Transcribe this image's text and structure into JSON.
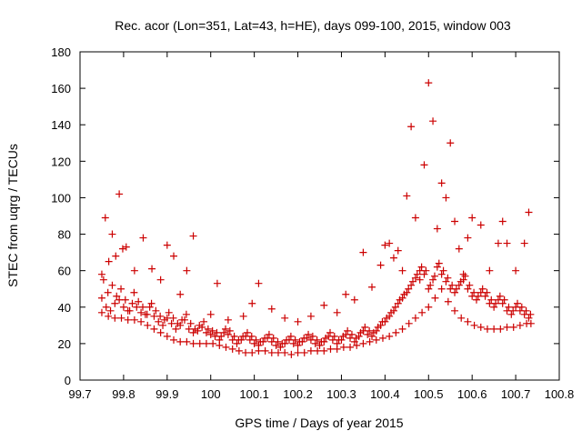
{
  "chart_data": {
    "type": "scatter",
    "title": "Rec. acor (Lon=351, Lat=43, h=HE), days 099-100, 2015, window 003",
    "xlabel": "GPS time / Days of year 2015",
    "ylabel": "STEC from uqrg / TECUs",
    "xlim": [
      99.7,
      100.8
    ],
    "ylim": [
      0,
      180
    ],
    "xticks": [
      99.7,
      99.8,
      99.9,
      100,
      100.1,
      100.2,
      100.3,
      100.4,
      100.5,
      100.6,
      100.7,
      100.8
    ],
    "xtick_labels": [
      "99.7",
      "99.8",
      "99.9",
      "100",
      "100.1",
      "100.2",
      "100.3",
      "100.4",
      "100.5",
      "100.6",
      "100.7",
      "100.8"
    ],
    "yticks": [
      0,
      20,
      40,
      60,
      80,
      100,
      120,
      140,
      160,
      180
    ],
    "ytick_labels": [
      "0",
      "20",
      "40",
      "60",
      "80",
      "100",
      "120",
      "140",
      "160",
      "180"
    ],
    "grid": false,
    "legend": "none",
    "marker": "+",
    "color": "#cc0000",
    "series": [
      {
        "x": [
          99.75,
          99.765,
          99.78,
          99.795,
          99.81,
          99.825,
          99.84,
          99.855,
          99.87,
          99.885,
          99.9,
          99.915,
          99.93,
          99.945,
          99.96,
          99.975,
          99.99,
          100.005,
          100.02,
          100.035,
          100.05,
          100.065,
          100.08,
          100.095,
          100.11,
          100.125,
          100.14,
          100.155,
          100.17,
          100.185,
          100.2,
          100.215,
          100.23,
          100.245,
          100.26,
          100.275,
          100.29,
          100.305,
          100.32,
          100.335,
          100.35,
          100.365,
          100.38,
          100.395,
          100.41,
          100.425,
          100.44,
          100.455,
          100.47,
          100.485,
          100.5,
          100.515,
          100.53,
          100.545,
          100.56,
          100.575,
          100.59,
          100.605,
          100.62,
          100.635,
          100.65,
          100.665,
          100.68,
          100.695,
          100.71,
          100.725,
          100.735
        ],
        "y": [
          37,
          35,
          34,
          34,
          33,
          33,
          32,
          30,
          28,
          26,
          24,
          22,
          21,
          21,
          20,
          20,
          20,
          20,
          19,
          18,
          17,
          16,
          15,
          15,
          16,
          16,
          15,
          15,
          15,
          14,
          15,
          15,
          16,
          16,
          16,
          17,
          17,
          18,
          18,
          19,
          20,
          21,
          22,
          23,
          24,
          26,
          28,
          31,
          34,
          37,
          40,
          45,
          50,
          43,
          38,
          34,
          32,
          30,
          29,
          28,
          28,
          28,
          29,
          29,
          30,
          31,
          31
        ]
      },
      {
        "x": [
          99.75,
          99.76,
          99.77,
          99.78,
          99.79,
          99.8,
          99.81,
          99.82,
          99.83,
          99.84,
          99.85,
          99.86,
          99.87,
          99.88,
          99.89,
          99.9,
          99.91,
          99.92,
          99.93,
          99.94,
          99.95,
          99.96,
          99.97,
          99.98,
          99.99,
          100.0,
          100.01,
          100.02,
          100.03,
          100.04,
          100.05,
          100.06,
          100.07,
          100.08,
          100.09,
          100.1,
          100.11,
          100.12,
          100.13,
          100.14,
          100.15,
          100.16,
          100.17,
          100.18,
          100.19,
          100.2,
          100.21,
          100.22,
          100.23,
          100.24,
          100.25,
          100.26,
          100.27,
          100.28,
          100.29,
          100.3,
          100.31,
          100.32,
          100.33,
          100.34,
          100.35,
          100.36,
          100.37,
          100.38,
          100.39,
          100.4,
          100.41,
          100.42,
          100.43,
          100.44,
          100.45,
          100.46,
          100.47,
          100.48,
          100.49,
          100.5,
          100.51,
          100.52,
          100.53,
          100.54,
          100.55,
          100.56,
          100.57,
          100.58,
          100.59,
          100.6,
          100.61,
          100.62,
          100.63,
          100.64,
          100.65,
          100.66,
          100.67,
          100.68,
          100.69,
          100.7,
          100.71,
          100.72,
          100.73
        ],
        "y": [
          45,
          40,
          38,
          42,
          44,
          40,
          38,
          42,
          40,
          37,
          36,
          40,
          35,
          32,
          30,
          34,
          31,
          28,
          30,
          33,
          28,
          26,
          27,
          29,
          26,
          25,
          24,
          22,
          26,
          25,
          22,
          20,
          22,
          24,
          22,
          20,
          19,
          21,
          23,
          21,
          19,
          18,
          20,
          22,
          20,
          19,
          21,
          23,
          22,
          20,
          19,
          21,
          24,
          22,
          20,
          22,
          25,
          23,
          21,
          24,
          27,
          25,
          24,
          27,
          30,
          32,
          35,
          38,
          42,
          45,
          48,
          52,
          56,
          60,
          58,
          50,
          55,
          62,
          58,
          54,
          50,
          48,
          52,
          55,
          50,
          46,
          44,
          48,
          46,
          42,
          40,
          44,
          42,
          38,
          36,
          40,
          38,
          36,
          34
        ],
        "y_alt": [
          55,
          48,
          52,
          46,
          50,
          44,
          38,
          48,
          43,
          40,
          36,
          42,
          38,
          35,
          33,
          37,
          34,
          31,
          33,
          36,
          31,
          28,
          30,
          32,
          28,
          27,
          26,
          24,
          28,
          27,
          24,
          22,
          24,
          26,
          24,
          22,
          21,
          23,
          25,
          23,
          21,
          20,
          22,
          24,
          22,
          21,
          23,
          25,
          24,
          22,
          21,
          23,
          26,
          24,
          22,
          24,
          27,
          25,
          23,
          26,
          29,
          27,
          26,
          29,
          32,
          34,
          37,
          40,
          44,
          47,
          50,
          54,
          58,
          62,
          60,
          52,
          57,
          64,
          60,
          56,
          52,
          50,
          54,
          57,
          52,
          48,
          46,
          50,
          48,
          44,
          42,
          46,
          44,
          40,
          38,
          42,
          40,
          38,
          36
        ]
      },
      {
        "x": [
          99.75,
          99.758,
          99.766,
          99.774,
          99.782,
          99.79,
          99.798,
          99.806,
          99.825,
          99.845,
          99.865,
          99.885,
          99.9,
          99.915,
          99.93,
          99.945,
          99.96,
          100.0,
          100.015,
          100.04,
          100.075,
          100.095,
          100.11,
          100.14,
          100.17,
          100.2,
          100.23,
          100.26,
          100.29,
          100.31,
          100.33,
          100.35,
          100.37,
          100.39,
          100.4,
          100.41,
          100.42,
          100.43,
          100.44,
          100.45,
          100.46,
          100.47,
          100.48,
          100.49,
          100.5,
          100.51,
          100.52,
          100.53,
          100.54,
          100.55,
          100.56,
          100.57,
          100.58,
          100.59,
          100.6,
          100.62,
          100.64,
          100.66,
          100.67,
          100.68,
          100.7,
          100.72,
          100.73
        ],
        "y": [
          58,
          89,
          65,
          80,
          68,
          102,
          72,
          73,
          60,
          78,
          61,
          55,
          74,
          68,
          47,
          60,
          79,
          36,
          53,
          33,
          35,
          42,
          53,
          39,
          34,
          32,
          35,
          41,
          37,
          47,
          44,
          70,
          51,
          63,
          74,
          75,
          67,
          71,
          60,
          101,
          139,
          89,
          55,
          118,
          163,
          142,
          83,
          108,
          100,
          130,
          87,
          72,
          58,
          78,
          89,
          85,
          60,
          75,
          87,
          75,
          60,
          75,
          92
        ]
      }
    ]
  }
}
